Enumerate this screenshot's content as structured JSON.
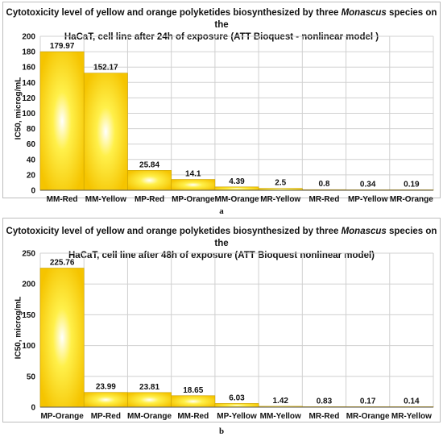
{
  "chart_data": [
    {
      "type": "bar",
      "title_parts": [
        "Cytotoxicity level of yellow and orange polyketides biosynthesized by three ",
        "Monascus",
        " species on the",
        "HaCaT, cell line after 24h of exposure (ATT Bioquest - nonlinear model )"
      ],
      "ylabel": "IC50, microg/mL",
      "categories": [
        "MM-Red",
        "MM-Yellow",
        "MP-Red",
        "MP-Orange",
        "MM-Orange",
        "MR-Yellow",
        "MR-Red",
        "MP-Yellow",
        "MR-Orange"
      ],
      "values": [
        179.97,
        152.17,
        25.84,
        14.1,
        4.39,
        2.5,
        0.8,
        0.34,
        0.19
      ],
      "value_labels": [
        "179.97",
        "152.17",
        "25.84",
        "14.1",
        "4.39",
        "2.5",
        "0.8",
        "0.34",
        "0.19"
      ],
      "ylim": [
        0,
        200
      ],
      "yticks": [
        0,
        20,
        40,
        60,
        80,
        100,
        120,
        140,
        160,
        180,
        200
      ],
      "grid": true,
      "legend": "none",
      "sublabel": "a"
    },
    {
      "type": "bar",
      "title_parts": [
        "Cytotoxicity level of yellow and orange polyketides biosynthesized by three ",
        "Monascus",
        " species on the",
        "HaCaT, cell line after 48h of exposure  (ATT Bioquest nonlinear model)"
      ],
      "ylabel": "IC50, microg/mL",
      "categories": [
        "MP-Orange",
        "MP-Red",
        "MM-Orange",
        "MM-Red",
        "MP-Yellow",
        "MM-Yellow",
        "MR-Red",
        "MR-Orange",
        "MR-Yellow"
      ],
      "values": [
        225.76,
        23.99,
        23.81,
        18.65,
        6.03,
        1.42,
        0.83,
        0.17,
        0.14
      ],
      "value_labels": [
        "225.76",
        "23.99",
        "23.81",
        "18.65",
        "6.03",
        "1.42",
        "0.83",
        "0.17",
        "0.14"
      ],
      "ylim": [
        0,
        250
      ],
      "yticks": [
        0,
        50,
        100,
        150,
        200,
        250
      ],
      "grid": true,
      "legend": "none",
      "sublabel": "b"
    }
  ],
  "colors": {
    "bar_center": "#ffffff",
    "bar_mid": "#fff04a",
    "bar_edge": "#f5c400",
    "bar_stroke": "#c9a000",
    "grid": "#d0d0d0",
    "axis": "#555555"
  }
}
